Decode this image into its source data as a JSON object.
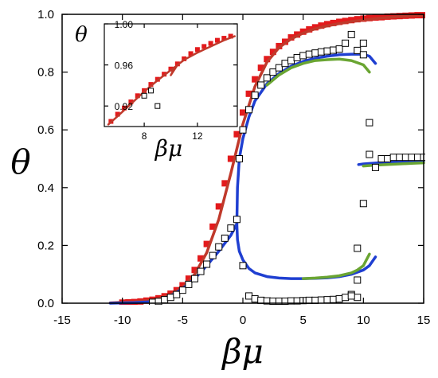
{
  "colors": {
    "red": "#e31a1c",
    "red_line": "#c0392b",
    "blue": "#1f3fd1",
    "green": "#6aa532",
    "black": "#000000"
  },
  "chart_data": [
    {
      "id": "main",
      "type": "line",
      "xlabel": "βμ",
      "ylabel": "θ",
      "xlim": [
        -15,
        15
      ],
      "ylim": [
        0,
        1
      ],
      "xticks": [
        -15,
        -10,
        -5,
        0,
        5,
        10,
        15
      ],
      "xtick_labels": [
        "-15",
        "-10",
        "-5",
        "0",
        "5",
        "10",
        "15"
      ],
      "yticks": [
        0,
        0.2,
        0.4,
        0.6,
        0.8,
        1.0
      ],
      "ytick_labels": [
        "0.0",
        "0.2",
        "0.4",
        "0.6",
        "0.8",
        "1.0"
      ],
      "grid": false,
      "series": [
        {
          "style": "filled-square",
          "color": "red",
          "x": [
            -10,
            -9.5,
            -9,
            -8.5,
            -8,
            -7.5,
            -7,
            -6.5,
            -6,
            -5.5,
            -5,
            -4.5,
            -4,
            -3.5,
            -3,
            -2.5,
            -2,
            -1.5,
            -1,
            -0.5,
            0,
            0.5,
            1,
            1.5,
            2,
            2.5,
            3,
            3.5,
            4,
            4.5,
            5,
            5.5,
            6,
            6.5,
            7,
            7.5,
            8,
            8.5,
            9,
            9.5,
            10,
            10.5,
            11,
            11.5,
            12,
            12.5,
            13,
            13.5,
            14,
            14.5,
            15
          ],
          "y": [
            0.002,
            0.003,
            0.004,
            0.006,
            0.009,
            0.012,
            0.017,
            0.024,
            0.033,
            0.045,
            0.062,
            0.085,
            0.115,
            0.155,
            0.205,
            0.265,
            0.335,
            0.415,
            0.5,
            0.585,
            0.66,
            0.725,
            0.775,
            0.815,
            0.845,
            0.87,
            0.89,
            0.905,
            0.92,
            0.93,
            0.94,
            0.948,
            0.955,
            0.961,
            0.966,
            0.97,
            0.974,
            0.977,
            0.98,
            0.983,
            0.985,
            0.987,
            0.989,
            0.99,
            0.992,
            0.993,
            0.994,
            0.995,
            0.996,
            0.997,
            0.997
          ]
        },
        {
          "style": "line",
          "color": "red_line",
          "x": [
            -11,
            -10,
            -9,
            -8,
            -7,
            -6,
            -5,
            -4,
            -3,
            -2,
            -1,
            0,
            1,
            2,
            3,
            4,
            5,
            6,
            7,
            8,
            9,
            10,
            11,
            12,
            13,
            14,
            15
          ],
          "y": [
            0.001,
            0.003,
            0.005,
            0.009,
            0.016,
            0.03,
            0.055,
            0.1,
            0.175,
            0.29,
            0.45,
            0.62,
            0.75,
            0.835,
            0.885,
            0.915,
            0.935,
            0.95,
            0.96,
            0.968,
            0.975,
            0.98,
            0.985,
            0.989,
            0.992,
            0.995,
            0.997
          ]
        },
        {
          "style": "line",
          "color": "blue",
          "x": [
            -11,
            -10,
            -9,
            -8,
            -7.5,
            -7,
            -6,
            -5,
            -4,
            -3,
            -2,
            -1,
            -0.5
          ],
          "y": [
            0.0,
            0.001,
            0.002,
            0.004,
            0.006,
            0.01,
            0.025,
            0.05,
            0.085,
            0.13,
            0.18,
            0.235,
            0.275
          ]
        },
        {
          "style": "line",
          "color": "blue",
          "x": [
            -0.5,
            -0.45,
            -0.3,
            0,
            0.5,
            1,
            2,
            3,
            4,
            5,
            6,
            7,
            8,
            9,
            10,
            10.5,
            11
          ],
          "y": [
            0.275,
            0.4,
            0.5,
            0.57,
            0.645,
            0.7,
            0.76,
            0.795,
            0.82,
            0.837,
            0.848,
            0.855,
            0.86,
            0.862,
            0.862,
            0.855,
            0.83
          ]
        },
        {
          "style": "line",
          "color": "blue",
          "x": [
            -0.5,
            -0.45,
            -0.3,
            0,
            0.5,
            1,
            2,
            3,
            4,
            5,
            6,
            7,
            8,
            9,
            10,
            10.5,
            11
          ],
          "y": [
            0.275,
            0.22,
            0.18,
            0.15,
            0.12,
            0.105,
            0.092,
            0.087,
            0.085,
            0.085,
            0.086,
            0.088,
            0.092,
            0.1,
            0.115,
            0.13,
            0.16
          ]
        },
        {
          "style": "line",
          "color": "blue",
          "x": [
            9.6,
            10,
            11,
            12,
            13,
            14,
            15
          ],
          "y": [
            0.48,
            0.482,
            0.485,
            0.488,
            0.49,
            0.492,
            0.494
          ]
        },
        {
          "style": "line",
          "color": "green",
          "x": [
            2,
            3,
            4,
            5,
            6,
            7,
            8,
            9,
            10,
            10.5
          ],
          "y": [
            0.755,
            0.79,
            0.815,
            0.83,
            0.84,
            0.843,
            0.845,
            0.84,
            0.825,
            0.8
          ]
        },
        {
          "style": "line",
          "color": "green",
          "x": [
            5,
            6,
            7,
            8,
            9,
            9.5,
            10,
            10.5
          ],
          "y": [
            0.085,
            0.087,
            0.09,
            0.095,
            0.105,
            0.115,
            0.13,
            0.17
          ]
        },
        {
          "style": "line",
          "color": "green",
          "x": [
            10,
            11,
            12,
            13,
            14,
            15
          ],
          "y": [
            0.475,
            0.478,
            0.48,
            0.482,
            0.484,
            0.486
          ]
        },
        {
          "style": "open-square",
          "color": "black",
          "x": [
            -7.5,
            -7,
            -6.5,
            -6,
            -5.5,
            -5,
            -4.5,
            -4,
            -3.5,
            -3,
            -2.5,
            -2,
            -1.5,
            -1,
            -0.5,
            -0.3,
            0,
            0.5,
            1,
            1.5,
            2,
            2.5,
            3,
            3.5,
            4,
            4.5,
            5,
            5.5,
            6,
            6.5,
            7,
            7.5,
            8,
            8.5,
            9,
            9.5,
            10,
            9.5,
            9.5,
            10,
            10.5,
            10.5,
            11,
            11.5,
            12,
            12.5,
            13,
            13.5,
            14,
            14.5,
            15,
            9,
            9.5,
            10
          ],
          "y": [
            0.003,
            0.006,
            0.012,
            0.02,
            0.03,
            0.045,
            0.065,
            0.085,
            0.11,
            0.135,
            0.165,
            0.195,
            0.225,
            0.26,
            0.29,
            0.5,
            0.6,
            0.67,
            0.72,
            0.755,
            0.78,
            0.8,
            0.815,
            0.83,
            0.84,
            0.85,
            0.857,
            0.862,
            0.866,
            0.87,
            0.873,
            0.876,
            0.88,
            0.9,
            0.93,
            0.875,
            0.86,
            0.19,
            0.08,
            0.345,
            0.625,
            0.515,
            0.47,
            0.5,
            0.5,
            0.505,
            0.505,
            0.505,
            0.505,
            0.505,
            0.505,
            0.03,
            0.02,
            0.9
          ]
        },
        {
          "style": "open-square",
          "color": "black",
          "x": [
            0,
            0.5,
            1,
            1.5,
            2,
            2.5,
            3,
            3.5,
            4,
            4.5,
            5,
            5.5,
            6,
            6.5,
            7,
            7.5,
            8,
            8.5,
            9
          ],
          "y": [
            0.13,
            0.025,
            0.015,
            0.01,
            0.008,
            0.007,
            0.007,
            0.007,
            0.008,
            0.008,
            0.009,
            0.01,
            0.01,
            0.011,
            0.012,
            0.013,
            0.015,
            0.02,
            0.025
          ]
        }
      ]
    },
    {
      "id": "inset",
      "type": "line",
      "xlabel": "βμ",
      "ylabel": "θ",
      "xlim": [
        5,
        15
      ],
      "ylim": [
        0.9,
        1.0
      ],
      "xticks": [
        8,
        12
      ],
      "xtick_labels": [
        "8",
        "12"
      ],
      "yticks": [
        0.92,
        0.96,
        1.0
      ],
      "ytick_labels": [
        "0.92",
        "0.96",
        "1.00"
      ],
      "grid": false,
      "series": [
        {
          "style": "filled-square",
          "color": "red",
          "x": [
            5.5,
            6,
            6.5,
            7,
            7.5,
            8,
            8.5,
            9,
            9.5,
            10,
            10.5,
            11,
            11.5,
            12,
            12.5,
            13,
            13.5,
            14,
            14.5
          ],
          "y": [
            0.905,
            0.912,
            0.918,
            0.924,
            0.93,
            0.935,
            0.941,
            0.946,
            0.951,
            0.956,
            0.961,
            0.966,
            0.971,
            0.975,
            0.978,
            0.981,
            0.984,
            0.986,
            0.988
          ]
        },
        {
          "style": "line",
          "color": "red_line",
          "x": [
            5.3,
            6,
            7,
            8,
            9,
            9.8,
            10.3,
            10.0,
            10.5,
            11,
            12,
            13,
            14,
            14.8
          ],
          "y": [
            0.902,
            0.91,
            0.922,
            0.934,
            0.945,
            0.953,
            0.958,
            0.95,
            0.96,
            0.965,
            0.972,
            0.978,
            0.984,
            0.988
          ]
        },
        {
          "style": "open-square",
          "color": "black",
          "x": [
            8.0,
            8.5,
            9.0
          ],
          "y": [
            0.93,
            0.935,
            0.92
          ]
        }
      ]
    }
  ]
}
